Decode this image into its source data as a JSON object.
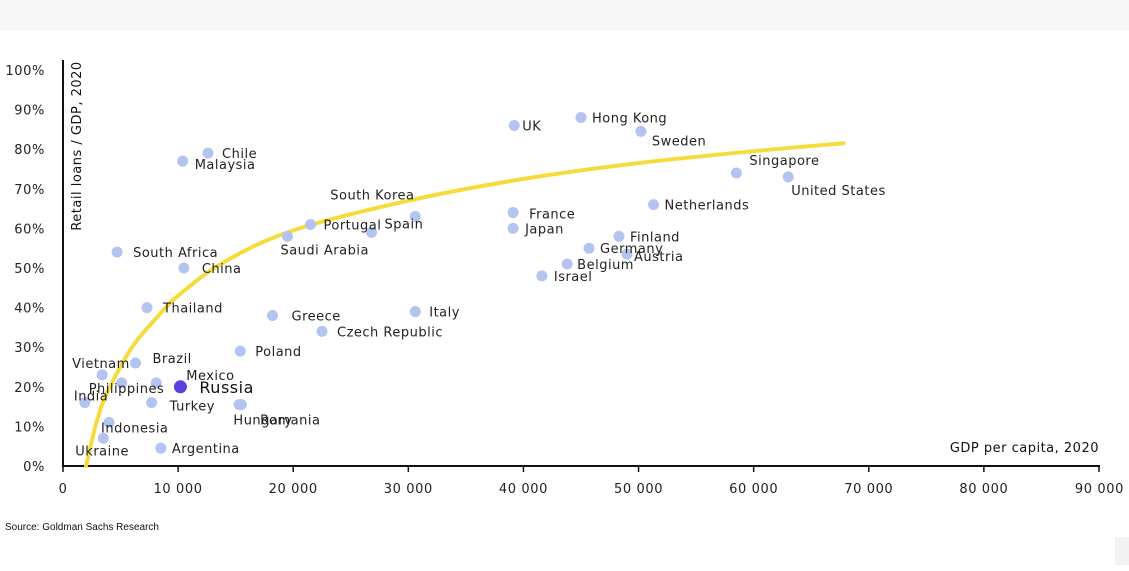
{
  "chart_data": {
    "type": "scatter",
    "title": "",
    "xlabel": "GDP per capita, 2020",
    "ylabel": "Retail loans / GDP, 2020",
    "xlim": [
      0,
      90000
    ],
    "ylim": [
      0,
      100
    ],
    "x_ticks": [
      0,
      10000,
      20000,
      30000,
      40000,
      50000,
      60000,
      70000,
      80000,
      90000
    ],
    "x_tick_labels": [
      "0",
      "10 000",
      "20 000",
      "30 000",
      "40 000",
      "50 000",
      "60 000",
      "70 000",
      "80 000",
      "90 000"
    ],
    "y_ticks": [
      0,
      10,
      20,
      30,
      40,
      50,
      60,
      70,
      80,
      90,
      100
    ],
    "y_tick_labels": [
      "0%",
      "10%",
      "20%",
      "30%",
      "40%",
      "50%",
      "60%",
      "70%",
      "80%",
      "90%",
      "100%"
    ],
    "grid": false,
    "colors": {
      "point": "#b4c4f0",
      "highlight": "#5a3ee0",
      "trend": "#f5dc3c",
      "axis": "#111111"
    },
    "points": [
      {
        "label": "UK",
        "x": 39200,
        "y": 86
      },
      {
        "label": "Hong Kong",
        "x": 45000,
        "y": 88
      },
      {
        "label": "Sweden",
        "x": 50200,
        "y": 84.5
      },
      {
        "label": "Chile",
        "x": 12600,
        "y": 79
      },
      {
        "label": "Malaysia",
        "x": 10400,
        "y": 77
      },
      {
        "label": "Singapore",
        "x": 58500,
        "y": 74
      },
      {
        "label": "United States",
        "x": 63000,
        "y": 73
      },
      {
        "label": "Netherlands",
        "x": 51300,
        "y": 66
      },
      {
        "label": "South Korea",
        "x": 30600,
        "y": 63
      },
      {
        "label": "France",
        "x": 39100,
        "y": 64
      },
      {
        "label": "Japan",
        "x": 39100,
        "y": 60
      },
      {
        "label": "Portugal",
        "x": 21500,
        "y": 61
      },
      {
        "label": "Spain",
        "x": 26800,
        "y": 59
      },
      {
        "label": "Saudi Arabia",
        "x": 19500,
        "y": 58
      },
      {
        "label": "Finland",
        "x": 48300,
        "y": 58
      },
      {
        "label": "Germany",
        "x": 45700,
        "y": 55
      },
      {
        "label": "Austria",
        "x": 49000,
        "y": 53.5
      },
      {
        "label": "Belgium",
        "x": 43800,
        "y": 51
      },
      {
        "label": "Israel",
        "x": 41600,
        "y": 48
      },
      {
        "label": "South Africa",
        "x": 4700,
        "y": 54
      },
      {
        "label": "China",
        "x": 10500,
        "y": 50
      },
      {
        "label": "Thailand",
        "x": 7300,
        "y": 40
      },
      {
        "label": "Greece",
        "x": 18200,
        "y": 38
      },
      {
        "label": "Italy",
        "x": 30600,
        "y": 39
      },
      {
        "label": "Czech Republic",
        "x": 22500,
        "y": 34
      },
      {
        "label": "Poland",
        "x": 15400,
        "y": 29
      },
      {
        "label": "Vietnam",
        "x": 3400,
        "y": 23
      },
      {
        "label": "Brazil",
        "x": 6300,
        "y": 26
      },
      {
        "label": "Mexico",
        "x": 8100,
        "y": 21
      },
      {
        "label": "Russia",
        "x": 10200,
        "y": 20,
        "highlight": true
      },
      {
        "label": "India",
        "x": 1900,
        "y": 16
      },
      {
        "label": "Philippines",
        "x": 5100,
        "y": 21
      },
      {
        "label": "Turkey",
        "x": 7700,
        "y": 16
      },
      {
        "label": "Hungary",
        "x": 15500,
        "y": 15.5
      },
      {
        "label": "Romania",
        "x": 15300,
        "y": 15.5
      },
      {
        "label": "Indonesia",
        "x": 4000,
        "y": 11
      },
      {
        "label": "Ukraine",
        "x": 3500,
        "y": 7
      },
      {
        "label": "Argentina",
        "x": 8500,
        "y": 4.5
      }
    ],
    "trendline": {
      "type": "logarithmic",
      "x": [
        2000,
        3000,
        4000,
        6000,
        8000,
        10000,
        14000,
        20000,
        30000,
        40000,
        50000,
        60000,
        67800
      ],
      "y": [
        0,
        12,
        19.5,
        30,
        37,
        43,
        51.5,
        59.5,
        67,
        72.5,
        76.5,
        79.5,
        81.5
      ]
    }
  },
  "source": "Source: Goldman Sachs Research"
}
